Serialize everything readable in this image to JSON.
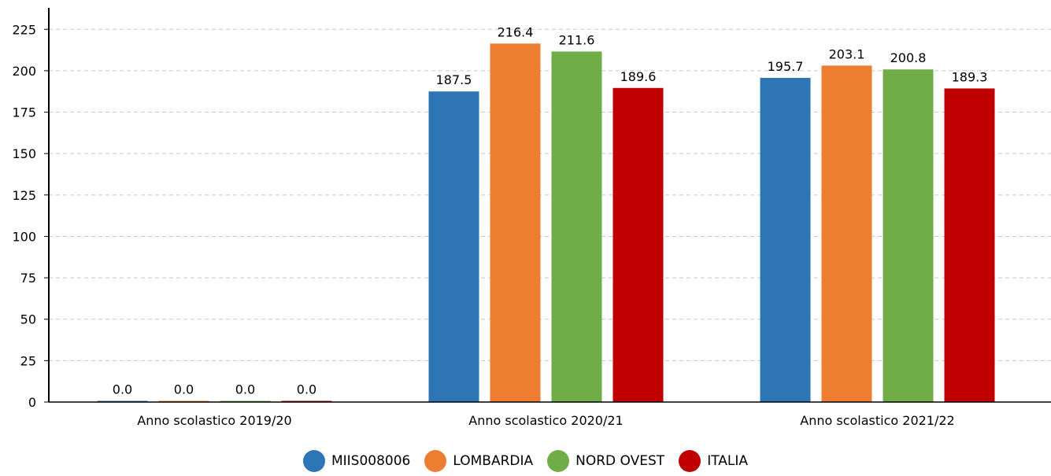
{
  "chart_data": {
    "type": "bar",
    "title": "",
    "xlabel": "",
    "ylabel": "",
    "ylim": [
      0,
      237
    ],
    "yticks": [
      0,
      25,
      50,
      75,
      100,
      125,
      150,
      175,
      200,
      225
    ],
    "categories": [
      "Anno scolastico 2019/20",
      "Anno scolastico 2020/21",
      "Anno scolastico 2021/22"
    ],
    "series": [
      {
        "name": "MIIS008006",
        "color": "#2e75b6",
        "values": [
          0.0,
          187.5,
          195.7
        ],
        "labels": [
          "0.0",
          "187.5",
          "195.7"
        ]
      },
      {
        "name": "LOMBARDIA",
        "color": "#ed7d31",
        "values": [
          0.0,
          216.4,
          203.1
        ],
        "labels": [
          "0.0",
          "216.4",
          "203.1"
        ]
      },
      {
        "name": "NORD OVEST",
        "color": "#70ad47",
        "values": [
          0.0,
          211.6,
          200.8
        ],
        "labels": [
          "0.0",
          "211.6",
          "200.8"
        ]
      },
      {
        "name": "ITALIA",
        "color": "#c00000",
        "values": [
          0.0,
          189.6,
          189.3
        ],
        "labels": [
          "0.0",
          "189.6",
          "189.3"
        ]
      }
    ],
    "grid": true,
    "legend_position": "bottom"
  }
}
